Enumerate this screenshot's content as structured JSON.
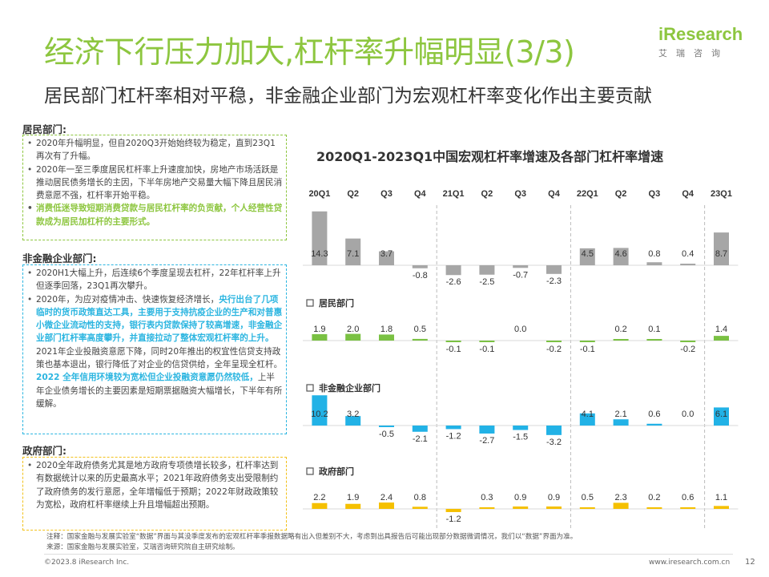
{
  "header": {
    "title": "经济下行压力加大,杠杆率升幅明显(3/3)",
    "subtitle": "居民部门杠杆率相对平稳，非金融企业部门为宏观杠杆率变化作出主要贡献",
    "logo_word": "iResearch",
    "logo_sub": "艾瑞咨询"
  },
  "sections": {
    "household": {
      "title": "居民部门:",
      "bullet1": "2020年升幅明显，但自2020Q3开始始终较为稳定，直到23Q1再次有了升幅。",
      "bullet2": "2020年一至三季度居民杠杆率上升速度加快，房地产市场活跃是推动居民债务增长的主因，下半年房地产交易量大幅下降且居民消费意愿不强，杠杆率开始平稳。",
      "bullet3_highlight": "消费低迷导致短期消费贷款与居民杠杆率的负贡献，个人经营性贷款成为居民加杠杆的主要形式。"
    },
    "nonfinancial": {
      "title": "非金融企业部门:",
      "bullet1": "2020H1大幅上升，后连续6个季度呈现去杠杆，22年杠杆率上升但逐季回落，23Q1再次攀升。",
      "bullet2_a": "2020年，为应对疫情冲击、快速恢复经济增长，",
      "bullet2_b": "央行出台了几项临时的货币政策直达工具，主要用于支持抗疫企业的生产和对普惠小微企业流动性的支持，银行表内贷款保持了较高增速，非金融企业部门杠杆率高度攀升，并直接拉动了整体宏观杠杆率的上升。",
      "bullet2_c": "2021年企业投融资意愿下降，同时20年推出的权宜性信贷支持政策也基本退出，银行降低了对企业的信贷供给，全年呈现全杠杆。",
      "bullet2_d": "2022 全年信用环境较为宽松但企业投融资意愿仍然较低，",
      "bullet2_e": "上半年企业债务增长的主要因素是短期票据融资大幅增长，下半年有所缓解。"
    },
    "government": {
      "title": "政府部门:",
      "bullet1": "2020全年政府债务尤其是地方政府专项债增长较多，杠杆率达到有数据统计以来的历史最高水平；2021年政府债务支出受限制约了政府债务的发行意愿，全年增幅低于预期；2022年财政政策较为宽松，政府杠杆率继续上升且增幅超出预期。"
    }
  },
  "chart_title": "2020Q1-2023Q1中国宏观杠杆率增速及各部门杠杆率增速",
  "chart_data": {
    "type": "bar",
    "categories": [
      "20Q1",
      "Q2",
      "Q3",
      "Q4",
      "21Q1",
      "Q2",
      "Q3",
      "Q4",
      "22Q1",
      "Q2",
      "Q3",
      "Q4",
      "23Q1"
    ],
    "series": [
      {
        "name": "",
        "values": [
          14.3,
          7.1,
          3.7,
          -0.8,
          -2.6,
          -2.5,
          -0.7,
          -2.3,
          4.5,
          4.6,
          0.8,
          0.4,
          8.7
        ],
        "color": "#a6a6a6",
        "label_color": "#333333"
      },
      {
        "name": "居民部门",
        "values": [
          1.9,
          2.0,
          1.8,
          0.5,
          -0.1,
          -0.1,
          0.0,
          -0.2,
          -0.1,
          0.2,
          0.1,
          -0.2,
          1.4
        ],
        "color": "#7ac143",
        "label_color": "#333333"
      },
      {
        "name": "非金融企业部门",
        "values": [
          10.2,
          3.2,
          -0.5,
          -2.1,
          -1.2,
          -2.7,
          -1.5,
          -3.2,
          4.1,
          2.1,
          0.6,
          0.0,
          6.1
        ],
        "color": "#22b2e6",
        "label_color": "#333333"
      },
      {
        "name": "政府部门",
        "values": [
          2.2,
          1.9,
          2.4,
          0.8,
          -1.2,
          0.3,
          0.9,
          0.9,
          0.5,
          2.3,
          0.2,
          0.6,
          1.1
        ],
        "color": "#f5c000",
        "label_color": "#333333"
      }
    ],
    "value_labels": [
      [
        "14.3",
        "7.1",
        "3.7",
        "-0.8",
        "-2.6",
        "-2.5",
        "-0.7",
        "-2.3",
        "4.5",
        "4.6",
        "0.8",
        "0.4",
        "8.7"
      ],
      [
        "1.9",
        "2.0",
        "1.8",
        "0.5",
        "-0.1",
        "-0.1",
        "0.0",
        "-0.2",
        "-0.1",
        "0.2",
        "0.1",
        "-0.2",
        "1.4"
      ],
      [
        "10.2",
        "3.2",
        "-0.5",
        "-2.1",
        "-1.2",
        "-2.7",
        "-1.5",
        "-3.2",
        "4.1",
        "2.1",
        "0.6",
        "0.0",
        "6.1"
      ],
      [
        "2.2",
        "1.9",
        "2.4",
        "0.8",
        "-1.2",
        "0.3",
        "0.9",
        "0.9",
        "0.5",
        "2.3",
        "0.2",
        "0.6",
        "1.1"
      ]
    ],
    "year_dividers_after_index": [
      3,
      7,
      11
    ]
  },
  "notes": {
    "line1": "注释：国家金融与发展实验室“数据”界面与其没季度发布的宏观杠杆率季报数据略有出入但差别不大，考虑到出具报告后可能出现部分数据微调情况，我们以“数据”界面为准。",
    "line2": "来源：国家金融与发展实验室，艾瑞咨询研究院自主研究绘制。"
  },
  "footer": {
    "copyright": "©2023.8 iResearch Inc.",
    "website": "www.iresearch.com.cn",
    "page": "12"
  }
}
